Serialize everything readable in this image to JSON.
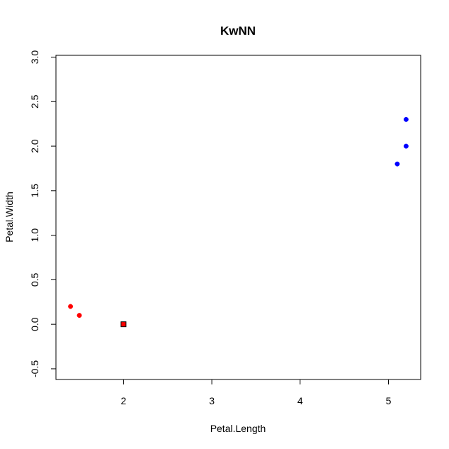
{
  "chart_data": {
    "type": "scatter",
    "title": "KwNN",
    "xlabel": "Petal.Length",
    "ylabel": "Petal.Width",
    "xlim": [
      1.235,
      5.365
    ],
    "ylim": [
      -0.62,
      3.02
    ],
    "xticks": [
      2,
      3,
      4,
      5
    ],
    "yticks": [
      -0.5,
      0.0,
      0.5,
      1.0,
      1.5,
      2.0,
      2.5,
      3.0
    ],
    "xtick_labels": [
      "2",
      "3",
      "4",
      "5"
    ],
    "ytick_labels": [
      "-0.5",
      "0.0",
      "0.5",
      "1.0",
      "1.5",
      "2.0",
      "2.5",
      "3.0"
    ],
    "grid": false,
    "legend": "none",
    "series": [
      {
        "color": "#ff0000",
        "marker": "circle",
        "points": [
          {
            "x": 1.4,
            "y": 0.2
          },
          {
            "x": 1.5,
            "y": 0.1
          }
        ]
      },
      {
        "color": "#0000ff",
        "marker": "circle",
        "points": [
          {
            "x": 5.1,
            "y": 1.8
          },
          {
            "x": 5.2,
            "y": 2.0
          },
          {
            "x": 5.2,
            "y": 2.3
          }
        ]
      },
      {
        "color": "#ff0000",
        "marker": "square-outlined",
        "points": [
          {
            "x": 2.0,
            "y": 0.0
          }
        ]
      }
    ]
  }
}
